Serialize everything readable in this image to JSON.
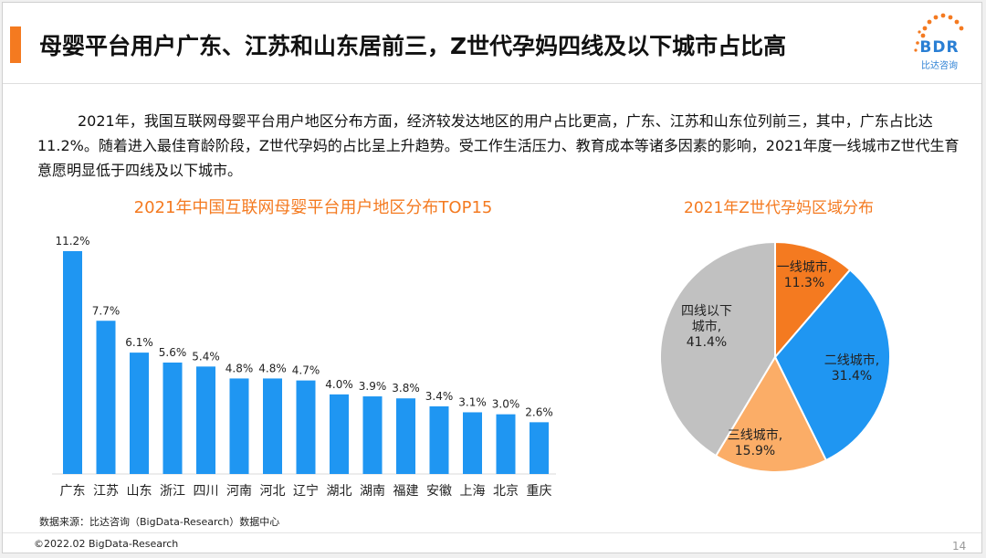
{
  "header": {
    "title": "母婴平台用户广东、江苏和山东居前三，Z世代孕妈四线及以下城市占比高",
    "logo_text": "BDR",
    "logo_sub": "比达咨询"
  },
  "paragraph": "2021年，我国互联网母婴平台用户地区分布方面，经济较发达地区的用户占比更高，广东、江苏和山东位列前三，其中，广东占比达11.2%。随着进入最佳育龄阶段，Z世代孕妈的占比呈上升趋势。受工作生活压力、教育成本等诸多因素的影响，2021年度一线城市Z世代生育意愿明显低于四线及以下城市。",
  "colors": {
    "accent": "#f47a20",
    "bar": "#1f96f2",
    "logo": "#2a7fd4"
  },
  "chart_data": [
    {
      "type": "bar",
      "title": "2021年中国互联网母婴平台用户地区分布TOP15",
      "categories": [
        "广东",
        "江苏",
        "山东",
        "浙江",
        "四川",
        "河南",
        "河北",
        "辽宁",
        "湖北",
        "湖南",
        "福建",
        "安徽",
        "上海",
        "北京",
        "重庆"
      ],
      "values": [
        11.2,
        7.7,
        6.1,
        5.6,
        5.4,
        4.8,
        4.8,
        4.7,
        4.0,
        3.9,
        3.8,
        3.4,
        3.1,
        3.0,
        2.6
      ],
      "data_labels": [
        "11.2%",
        "7.7%",
        "6.1%",
        "5.6%",
        "5.4%",
        "4.8%",
        "4.8%",
        "4.7%",
        "4.0%",
        "3.9%",
        "3.8%",
        "3.4%",
        "3.1%",
        "3.0%",
        "2.6%"
      ],
      "unit": "%",
      "ylim": [
        0,
        12
      ],
      "grid": false,
      "color": "#1f96f2"
    },
    {
      "type": "pie",
      "title": "2021年Z世代孕妈区域分布",
      "slices": [
        {
          "label": "一线城市,",
          "value": 11.3,
          "value_label": "11.3%",
          "color": "#f47a20"
        },
        {
          "label": "二线城市,",
          "value": 31.4,
          "value_label": "31.4%",
          "color": "#1f96f2"
        },
        {
          "label": "三线城市,",
          "value": 15.9,
          "value_label": "15.9%",
          "color": "#fbad67"
        },
        {
          "label": "四线以下城市,",
          "label_lines": [
            "四线以下",
            "城市,"
          ],
          "value": 41.4,
          "value_label": "41.4%",
          "color": "#c1c1c1"
        }
      ],
      "start_angle": "12 o'clock",
      "direction": "clockwise"
    }
  ],
  "footer": {
    "source": "数据来源：比达咨询（BigData-Research）数据中心",
    "copyright": "©2022.02 BigData-Research",
    "page": "14"
  }
}
